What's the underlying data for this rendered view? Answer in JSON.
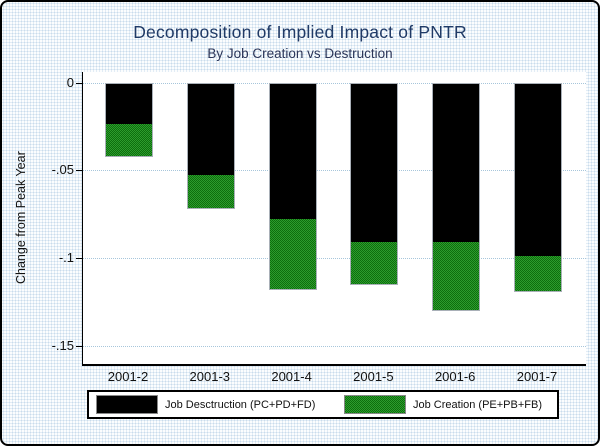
{
  "chart_data": {
    "type": "bar",
    "stacked": true,
    "title": "Decomposition of Implied Impact of PNTR",
    "subtitle": "By Job Creation vs Destruction",
    "ylabel": "Change from Peak Year",
    "xlabel": "",
    "categories": [
      "2001-2",
      "2001-3",
      "2001-4",
      "2001-5",
      "2001-6",
      "2001-7"
    ],
    "series": [
      {
        "name": "Job Desctruction (PC+PD+FD)",
        "color": "#000000",
        "values": [
          -0.023,
          -0.052,
          -0.077,
          -0.09,
          -0.09,
          -0.098
        ]
      },
      {
        "name": "Job Creation (PE+PB+FB)",
        "color": "#1a8a1a",
        "values": [
          -0.018,
          -0.019,
          -0.04,
          -0.024,
          -0.039,
          -0.02
        ]
      }
    ],
    "stack_totals": [
      -0.041,
      -0.071,
      -0.117,
      -0.114,
      -0.129,
      -0.118
    ],
    "y_ticks": [
      0,
      -0.05,
      -0.1,
      -0.15
    ],
    "y_tick_labels": [
      "0",
      "-.05",
      "-.1",
      "-.15"
    ],
    "ylim": [
      -0.163,
      0.006
    ],
    "grid": true,
    "gridline_style": "dotted",
    "legend_position": "bottom",
    "colors": {
      "plot_background": "#ffffff",
      "figure_background": "#eef4f8",
      "axis": "#000000",
      "gridline": "#a7c6db",
      "title": "#203a66"
    }
  }
}
